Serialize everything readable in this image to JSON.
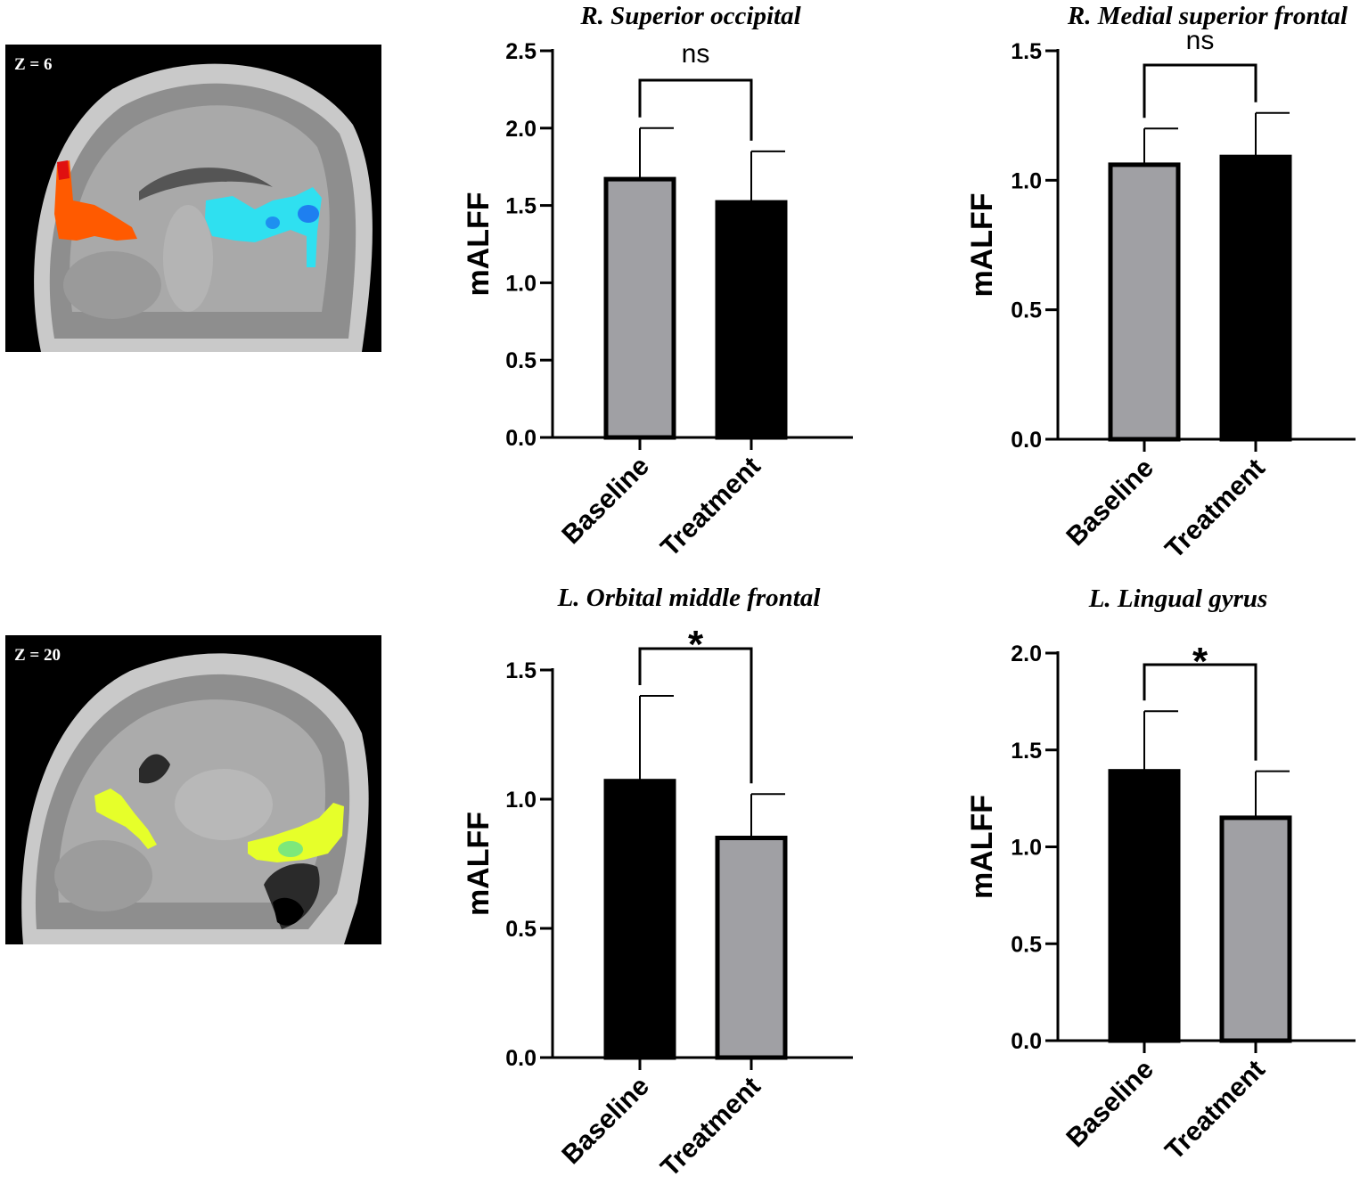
{
  "brain_images": [
    {
      "slice_label": "Z = 6",
      "regions": [
        {
          "color": "#ff5a00"
        },
        {
          "color": "#2fe0f0"
        }
      ]
    },
    {
      "slice_label": "Z = 20",
      "regions": [
        {
          "color": "#e6ff2a"
        },
        {
          "color": "#e6ff2a"
        }
      ]
    }
  ],
  "colors": {
    "gray_bar": "#a0a0a4",
    "black_bar": "#000000"
  },
  "chart_data": [
    {
      "type": "bar",
      "title": "R. Superior occipital",
      "ylabel": "mALFF",
      "categories": [
        "Baseline",
        "Treatment"
      ],
      "values": [
        1.67,
        1.52
      ],
      "errors": [
        0.33,
        0.33
      ],
      "bar_colors": [
        "#a0a0a4",
        "#000000"
      ],
      "ylim": [
        0,
        2.5
      ],
      "yticks": [
        "0.0",
        "0.5",
        "1.0",
        "1.5",
        "2.0",
        "2.5"
      ],
      "significance": "ns"
    },
    {
      "type": "bar",
      "title": "R. Medial superior frontal",
      "ylabel": "mALFF",
      "categories": [
        "Baseline",
        "Treatment"
      ],
      "values": [
        1.06,
        1.09
      ],
      "errors": [
        0.14,
        0.17
      ],
      "bar_colors": [
        "#a0a0a4",
        "#000000"
      ],
      "ylim": [
        0,
        1.5
      ],
      "yticks": [
        "0.0",
        "0.5",
        "1.0",
        "1.5"
      ],
      "significance": "ns"
    },
    {
      "type": "bar",
      "title": "L. Orbital middle frontal",
      "ylabel": "mALFF",
      "categories": [
        "Baseline",
        "Treatment"
      ],
      "values": [
        1.07,
        0.85
      ],
      "errors": [
        0.33,
        0.17
      ],
      "bar_colors": [
        "#000000",
        "#a0a0a4"
      ],
      "ylim": [
        0,
        1.5
      ],
      "yticks": [
        "0.0",
        "0.5",
        "1.0",
        "1.5"
      ],
      "significance": "*"
    },
    {
      "type": "bar",
      "title": "L. Lingual gyrus",
      "ylabel": "mALFF",
      "categories": [
        "Baseline",
        "Treatment"
      ],
      "values": [
        1.39,
        1.15
      ],
      "errors": [
        0.31,
        0.24
      ],
      "bar_colors": [
        "#000000",
        "#a0a0a4"
      ],
      "ylim": [
        0,
        2.0
      ],
      "yticks": [
        "0.0",
        "0.5",
        "1.0",
        "1.5",
        "2.0"
      ],
      "significance": "*"
    }
  ]
}
